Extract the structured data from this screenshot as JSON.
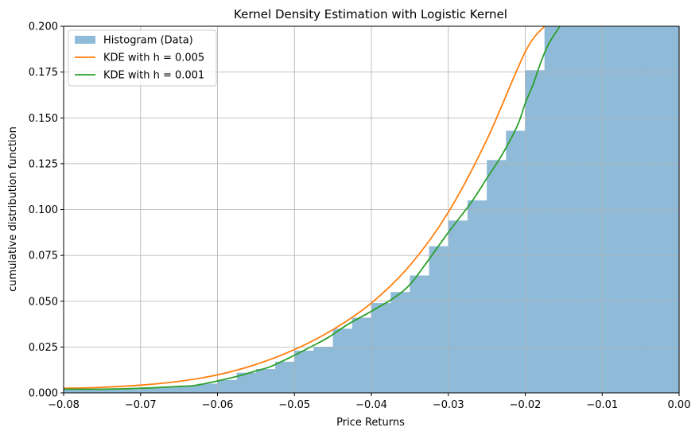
{
  "chart_data": {
    "type": "histogram+line",
    "title": "Kernel Density Estimation with Logistic Kernel",
    "xlabel": "Price Returns",
    "ylabel": "cumulative distribution function",
    "xlim": [
      -0.08,
      0.0
    ],
    "ylim": [
      0.0,
      0.2
    ],
    "xticks": [
      -0.08,
      -0.07,
      -0.06,
      -0.05,
      -0.04,
      -0.03,
      -0.02,
      -0.01,
      0.0
    ],
    "xtick_labels": [
      "−0.08",
      "−0.07",
      "−0.06",
      "−0.05",
      "−0.04",
      "−0.03",
      "−0.02",
      "−0.01",
      "0.00"
    ],
    "yticks": [
      0.0,
      0.025,
      0.05,
      0.075,
      0.1,
      0.125,
      0.15,
      0.175,
      0.2
    ],
    "ytick_labels": [
      "0.000",
      "0.025",
      "0.050",
      "0.075",
      "0.100",
      "0.125",
      "0.150",
      "0.175",
      "0.200"
    ],
    "grid": true,
    "legend_position": "top-left",
    "colors": {
      "histogram": "#8fbbd9",
      "kde_h_0_005": "#ff7f0e",
      "kde_h_0_001": "#2ca02c"
    },
    "histogram": {
      "name": "Histogram (Data)",
      "bin_width": 0.0025,
      "bins": [
        {
          "x0": -0.08,
          "x1": -0.0775,
          "y": 0.002
        },
        {
          "x0": -0.0775,
          "x1": -0.075,
          "y": 0.002
        },
        {
          "x0": -0.075,
          "x1": -0.0725,
          "y": 0.002
        },
        {
          "x0": -0.0725,
          "x1": -0.07,
          "y": 0.002
        },
        {
          "x0": -0.07,
          "x1": -0.0675,
          "y": 0.003
        },
        {
          "x0": -0.0675,
          "x1": -0.065,
          "y": 0.003
        },
        {
          "x0": -0.065,
          "x1": -0.0625,
          "y": 0.004
        },
        {
          "x0": -0.0625,
          "x1": -0.06,
          "y": 0.005
        },
        {
          "x0": -0.06,
          "x1": -0.0575,
          "y": 0.007
        },
        {
          "x0": -0.0575,
          "x1": -0.055,
          "y": 0.011
        },
        {
          "x0": -0.055,
          "x1": -0.0525,
          "y": 0.013
        },
        {
          "x0": -0.0525,
          "x1": -0.05,
          "y": 0.017
        },
        {
          "x0": -0.05,
          "x1": -0.0475,
          "y": 0.023
        },
        {
          "x0": -0.0475,
          "x1": -0.045,
          "y": 0.025
        },
        {
          "x0": -0.045,
          "x1": -0.0425,
          "y": 0.035
        },
        {
          "x0": -0.0425,
          "x1": -0.04,
          "y": 0.041
        },
        {
          "x0": -0.04,
          "x1": -0.0375,
          "y": 0.049
        },
        {
          "x0": -0.0375,
          "x1": -0.035,
          "y": 0.055
        },
        {
          "x0": -0.035,
          "x1": -0.0325,
          "y": 0.064
        },
        {
          "x0": -0.0325,
          "x1": -0.03,
          "y": 0.08
        },
        {
          "x0": -0.03,
          "x1": -0.0275,
          "y": 0.094
        },
        {
          "x0": -0.0275,
          "x1": -0.025,
          "y": 0.105
        },
        {
          "x0": -0.025,
          "x1": -0.0225,
          "y": 0.127
        },
        {
          "x0": -0.0225,
          "x1": -0.02,
          "y": 0.143
        },
        {
          "x0": -0.02,
          "x1": -0.0175,
          "y": 0.176
        },
        {
          "x0": -0.0175,
          "x1": -0.015,
          "y": 0.2
        },
        {
          "x0": -0.015,
          "x1": -0.0125,
          "y": 0.2
        },
        {
          "x0": -0.0125,
          "x1": -0.01,
          "y": 0.2
        },
        {
          "x0": -0.01,
          "x1": -0.0075,
          "y": 0.2
        },
        {
          "x0": -0.0075,
          "x1": -0.005,
          "y": 0.2
        },
        {
          "x0": -0.005,
          "x1": -0.0025,
          "y": 0.2
        },
        {
          "x0": -0.0025,
          "x1": 0.0,
          "y": 0.2
        }
      ]
    },
    "series": [
      {
        "name": "KDE with h = 0.005",
        "x": [
          -0.08,
          -0.075,
          -0.07,
          -0.065,
          -0.06,
          -0.055,
          -0.05,
          -0.045,
          -0.04,
          -0.035,
          -0.03,
          -0.025,
          -0.02,
          -0.0175
        ],
        "y": [
          0.0025,
          0.003,
          0.0042,
          0.0063,
          0.0098,
          0.0155,
          0.0236,
          0.0345,
          0.049,
          0.0695,
          0.0985,
          0.138,
          0.186,
          0.2
        ]
      },
      {
        "name": "KDE with h = 0.001",
        "x": [
          -0.08,
          -0.075,
          -0.07,
          -0.065,
          -0.063,
          -0.06,
          -0.057,
          -0.055,
          -0.053,
          -0.05,
          -0.047,
          -0.0455,
          -0.043,
          -0.04,
          -0.037,
          -0.035,
          -0.033,
          -0.03,
          -0.027,
          -0.025,
          -0.023,
          -0.021,
          -0.02,
          -0.019,
          -0.018,
          -0.017,
          -0.0155
        ],
        "y": [
          0.002,
          0.002,
          0.0025,
          0.0035,
          0.004,
          0.0065,
          0.0095,
          0.012,
          0.0145,
          0.0205,
          0.027,
          0.0305,
          0.0375,
          0.0445,
          0.052,
          0.059,
          0.07,
          0.0875,
          0.104,
          0.117,
          0.13,
          0.146,
          0.158,
          0.168,
          0.18,
          0.19,
          0.2
        ]
      }
    ]
  }
}
